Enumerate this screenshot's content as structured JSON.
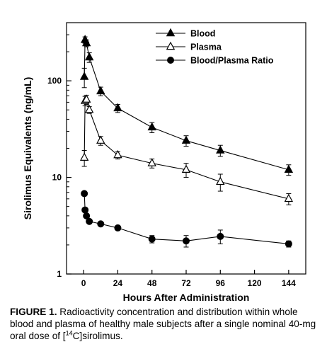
{
  "chart_data": {
    "type": "line",
    "xlabel": "Hours After Administration",
    "ylabel": "Sirolimus Equivalents (ng/mL)",
    "y_scale": "log",
    "xlim": [
      -12,
      156
    ],
    "ylim": [
      1,
      400
    ],
    "x_ticks": [
      0,
      24,
      48,
      72,
      96,
      120,
      144
    ],
    "y_ticks": [
      1,
      10,
      100
    ],
    "legend_position": "top-right",
    "series": [
      {
        "name": "Blood",
        "marker": "filled-triangle",
        "x": [
          0.5,
          1,
          2,
          4,
          12,
          24,
          48,
          72,
          96,
          144
        ],
        "y": [
          110,
          265,
          245,
          175,
          78,
          52,
          33,
          24,
          19,
          12
        ],
        "err": [
          25,
          20,
          20,
          20,
          8,
          5,
          4,
          3,
          2.5,
          1.5
        ]
      },
      {
        "name": "Plasma",
        "marker": "open-triangle",
        "x": [
          0.5,
          1,
          2,
          4,
          12,
          24,
          48,
          72,
          96,
          144
        ],
        "y": [
          16,
          62,
          64,
          50,
          24,
          17,
          14,
          12,
          9,
          6
        ],
        "err": [
          3,
          7,
          7,
          4,
          2.5,
          1.5,
          1.5,
          2,
          1.8,
          0.8
        ]
      },
      {
        "name": "Blood/Plasma Ratio",
        "marker": "filled-circle",
        "x": [
          0.5,
          1,
          2,
          4,
          12,
          24,
          48,
          72,
          96,
          144
        ],
        "y": [
          6.8,
          4.6,
          4.0,
          3.5,
          3.3,
          3.0,
          2.3,
          2.2,
          2.45,
          2.05
        ],
        "err": [
          0,
          0,
          0,
          0,
          0,
          0,
          0.2,
          0.3,
          0.4,
          0.15
        ]
      }
    ]
  },
  "caption": {
    "label": "FIGURE 1.",
    "text_before": "Radioactivity concentration and distribution within whole blood and plasma of healthy male subjects after a single nominal 40-mg oral dose of [",
    "superscript": "14",
    "text_after": "C]sirolimus."
  }
}
